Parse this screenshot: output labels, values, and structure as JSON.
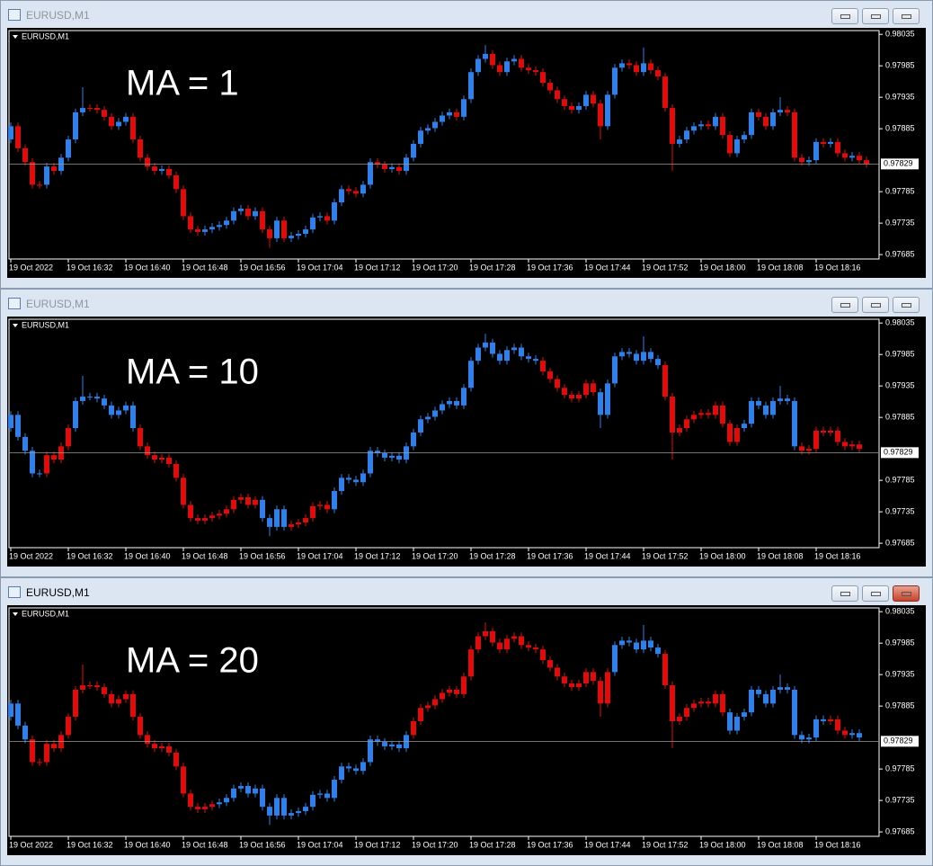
{
  "windows": [
    {
      "title": "EURUSD,M1",
      "chart_label": "EURUSD,M1",
      "annotation": "MA = 1",
      "active": false,
      "candle_colors": "brrrrbrbbbbrrrrbbrrrrbrrrrrbbbbbbrbrrbrbbbbbrbbrrbbrrbrbbbbbbbrbbbbrrbbrrrrrrrrbbrrbbbrrbrrrrbbbbrbrrbbbrrbbrrrbbrbrrbrr"
    },
    {
      "title": "EURUSD,M1",
      "chart_label": "EURUSD,M1",
      "annotation": "MA = 10",
      "active": false,
      "candle_colors": "bbbbbrrrrbbbbbbbbbrrrrrrrrrrrrrrrrrbbbbrrrrrrbbbbbbbbbbbbbbbbbbbbbbbbbbbbbrrrrrrrrbbbbbbbbbrrrrrrrrrrrbbbbbbbbrrrrrrrrr"
    },
    {
      "title": "EURUSD,M1",
      "chart_label": "EURUSD,M1",
      "annotation": "MA = 20",
      "active": true,
      "candle_colors": "bbbrrrrrrrrrrrrrrrrrrrrrrrrrrbbbbbbbbbbbbbbbbbbbbbbbbbbbrrrrrrrrrrrrrrrrrrrrrrrrrrrrbbbbbbbrrrrrrrrrbbbbbbbbbbbbbbrrrbb"
    }
  ],
  "chart_data": {
    "type": "candlestick",
    "x": [
      "19 Oct 2022",
      null,
      null,
      null,
      null,
      null,
      null,
      null,
      "19 Oct 16:32",
      null,
      null,
      null,
      null,
      null,
      null,
      null,
      "19 Oct 16:40",
      null,
      null,
      null,
      null,
      null,
      null,
      null,
      "19 Oct 16:48",
      null,
      null,
      null,
      null,
      null,
      null,
      null,
      "19 Oct 16:56",
      null,
      null,
      null,
      null,
      null,
      null,
      null,
      "19 Oct 17:04",
      null,
      null,
      null,
      null,
      null,
      null,
      null,
      "19 Oct 17:12",
      null,
      null,
      null,
      null,
      null,
      null,
      null,
      "19 Oct 17:20",
      null,
      null,
      null,
      null,
      null,
      null,
      null,
      "19 Oct 17:28",
      null,
      null,
      null,
      null,
      null,
      null,
      null,
      "19 Oct 17:36",
      null,
      null,
      null,
      null,
      null,
      null,
      null,
      "19 Oct 17:44",
      null,
      null,
      null,
      null,
      null,
      null,
      null,
      "19 Oct 17:52",
      null,
      null,
      null,
      null,
      null,
      null,
      null,
      "19 Oct 18:00",
      null,
      null,
      null,
      null,
      null,
      null,
      null,
      "19 Oct 18:08",
      null,
      null,
      null,
      null,
      null,
      null,
      null,
      "19 Oct 18:16",
      null,
      null,
      null,
      null,
      null,
      null,
      null
    ],
    "open": [
      0.97868,
      0.97889,
      0.97854,
      0.97832,
      0.97796,
      0.97796,
      0.97825,
      0.97818,
      0.97839,
      0.97868,
      0.97911,
      0.97918,
      0.97918,
      0.97915,
      0.97904,
      0.97889,
      0.97896,
      0.97904,
      0.97868,
      0.97839,
      0.97825,
      0.97818,
      0.97821,
      0.97811,
      0.97789,
      0.97746,
      0.97725,
      0.97721,
      0.97725,
      0.97729,
      0.97732,
      0.97739,
      0.97754,
      0.97758,
      0.97746,
      0.97754,
      0.97725,
      0.97711,
      0.97739,
      0.97711,
      0.97715,
      0.97718,
      0.97725,
      0.97744,
      0.97746,
      0.97739,
      0.97768,
      0.97789,
      0.97786,
      0.97782,
      0.97796,
      0.97832,
      0.97828,
      0.97821,
      0.97824,
      0.97818,
      0.97839,
      0.97861,
      0.97882,
      0.97886,
      0.97896,
      0.97906,
      0.97911,
      0.97904,
      0.97932,
      0.97975,
      0.97996,
      0.98004,
      0.97986,
      0.97975,
      0.97992,
      0.97996,
      0.97982,
      0.97978,
      0.97975,
      0.97958,
      0.97946,
      0.97932,
      0.97921,
      0.97915,
      0.97921,
      0.97939,
      0.97925,
      0.97889,
      0.97939,
      0.97982,
      0.97989,
      0.97986,
      0.97975,
      0.97989,
      0.97978,
      0.97968,
      0.97918,
      0.97861,
      0.97868,
      0.97882,
      0.97889,
      0.97892,
      0.97889,
      0.97904,
      0.97875,
      0.97846,
      0.97868,
      0.97875,
      0.97911,
      0.97904,
      0.97889,
      0.97911,
      0.97915,
      0.97911,
      0.97839,
      0.97832,
      0.97835,
      0.97864,
      0.97861,
      0.97864,
      0.97846,
      0.97839,
      0.97842,
      0.97835
    ],
    "high": [
      0.97895,
      0.97895,
      0.9786,
      0.97838,
      0.97802,
      0.97831,
      0.97831,
      0.97845,
      0.97874,
      0.97917,
      0.97951,
      0.97924,
      0.97924,
      0.97921,
      0.9791,
      0.97902,
      0.9791,
      0.9791,
      0.97874,
      0.97845,
      0.97831,
      0.97827,
      0.97827,
      0.97817,
      0.97795,
      0.97752,
      0.97731,
      0.97731,
      0.97735,
      0.97738,
      0.97745,
      0.9776,
      0.97764,
      0.97764,
      0.9776,
      0.9776,
      0.97731,
      0.97745,
      0.97745,
      0.97721,
      0.97724,
      0.97731,
      0.9775,
      0.97752,
      0.97752,
      0.97774,
      0.97795,
      0.97795,
      0.97792,
      0.97802,
      0.97838,
      0.97838,
      0.97834,
      0.9783,
      0.9783,
      0.97845,
      0.97867,
      0.97888,
      0.97892,
      0.97902,
      0.97912,
      0.97917,
      0.97917,
      0.97938,
      0.97981,
      0.98002,
      0.98018,
      0.9801,
      0.97992,
      0.97998,
      0.98002,
      0.98002,
      0.97988,
      0.97984,
      0.97981,
      0.97964,
      0.97952,
      0.97938,
      0.97927,
      0.97927,
      0.97945,
      0.97945,
      0.97931,
      0.97945,
      0.97988,
      0.97995,
      0.97995,
      0.97992,
      0.98014,
      0.97995,
      0.97984,
      0.97974,
      0.97924,
      0.97874,
      0.97888,
      0.97895,
      0.97898,
      0.97898,
      0.9791,
      0.9791,
      0.97881,
      0.97874,
      0.97881,
      0.97917,
      0.97917,
      0.9791,
      0.97917,
      0.97935,
      0.97921,
      0.97917,
      0.97845,
      0.97841,
      0.9787,
      0.9787,
      0.9787,
      0.9787,
      0.97852,
      0.97848,
      0.97848,
      0.97841
    ],
    "low": [
      0.97862,
      0.97848,
      0.97826,
      0.9779,
      0.9779,
      0.9779,
      0.97812,
      0.97812,
      0.97833,
      0.97862,
      0.97905,
      0.97912,
      0.97909,
      0.97898,
      0.97883,
      0.97883,
      0.9789,
      0.97862,
      0.97833,
      0.97819,
      0.97812,
      0.97812,
      0.97805,
      0.97783,
      0.9774,
      0.97719,
      0.97715,
      0.97715,
      0.97719,
      0.97723,
      0.97726,
      0.97733,
      0.97748,
      0.9774,
      0.9774,
      0.97719,
      0.97696,
      0.97705,
      0.97705,
      0.97705,
      0.97709,
      0.97712,
      0.97719,
      0.97738,
      0.97733,
      0.97733,
      0.97762,
      0.9778,
      0.97776,
      0.97776,
      0.9779,
      0.97822,
      0.97815,
      0.97815,
      0.97812,
      0.97812,
      0.97833,
      0.97855,
      0.97876,
      0.9788,
      0.9789,
      0.979,
      0.97898,
      0.97898,
      0.97926,
      0.97969,
      0.9799,
      0.9798,
      0.97969,
      0.97969,
      0.97986,
      0.97976,
      0.97972,
      0.97969,
      0.97952,
      0.9794,
      0.97926,
      0.97915,
      0.97909,
      0.97909,
      0.97915,
      0.97919,
      0.97868,
      0.97883,
      0.97933,
      0.97976,
      0.9798,
      0.97969,
      0.97969,
      0.97972,
      0.97962,
      0.97912,
      0.97818,
      0.97855,
      0.97862,
      0.97876,
      0.97883,
      0.97883,
      0.97883,
      0.97869,
      0.9784,
      0.9784,
      0.97862,
      0.97869,
      0.97898,
      0.97883,
      0.97883,
      0.97905,
      0.97905,
      0.97833,
      0.97826,
      0.97826,
      0.97829,
      0.97855,
      0.97855,
      0.9784,
      0.97833,
      0.97833,
      0.97829,
      0.97823
    ],
    "close": [
      0.97889,
      0.97854,
      0.97832,
      0.97796,
      0.97796,
      0.97825,
      0.97818,
      0.97839,
      0.97868,
      0.97911,
      0.97918,
      0.97918,
      0.97915,
      0.97904,
      0.97889,
      0.97896,
      0.97904,
      0.97868,
      0.97839,
      0.97825,
      0.97818,
      0.97821,
      0.97811,
      0.97789,
      0.97746,
      0.97725,
      0.97721,
      0.97725,
      0.97729,
      0.97732,
      0.97739,
      0.97754,
      0.97758,
      0.97746,
      0.97754,
      0.97725,
      0.97711,
      0.97739,
      0.97711,
      0.97715,
      0.97718,
      0.97725,
      0.97744,
      0.97746,
      0.97739,
      0.97768,
      0.97789,
      0.97786,
      0.97782,
      0.97796,
      0.97832,
      0.97828,
      0.97821,
      0.97824,
      0.97818,
      0.97839,
      0.97861,
      0.97882,
      0.97886,
      0.97896,
      0.97906,
      0.97911,
      0.97904,
      0.97932,
      0.97975,
      0.97996,
      0.98004,
      0.97986,
      0.97975,
      0.97992,
      0.97996,
      0.97982,
      0.97978,
      0.97975,
      0.97958,
      0.97946,
      0.97932,
      0.97921,
      0.97915,
      0.97921,
      0.97939,
      0.97925,
      0.97889,
      0.97939,
      0.97982,
      0.97989,
      0.97986,
      0.97975,
      0.97989,
      0.97978,
      0.97968,
      0.97918,
      0.97861,
      0.97868,
      0.97882,
      0.97889,
      0.97892,
      0.97889,
      0.97904,
      0.97875,
      0.97846,
      0.97868,
      0.97875,
      0.97911,
      0.97904,
      0.97889,
      0.97911,
      0.97915,
      0.97911,
      0.97839,
      0.97832,
      0.97835,
      0.97864,
      0.97861,
      0.97864,
      0.97846,
      0.97839,
      0.97842,
      0.97835,
      0.97829
    ],
    "ylim": [
      0.97678,
      0.98041
    ],
    "yticks": [
      0.98035,
      0.97985,
      0.97935,
      0.97885,
      0.97785,
      0.97735,
      0.97685
    ],
    "price_line": 0.97829,
    "colors": {
      "b": "#2f80ea",
      "r": "#e00c0c"
    }
  }
}
